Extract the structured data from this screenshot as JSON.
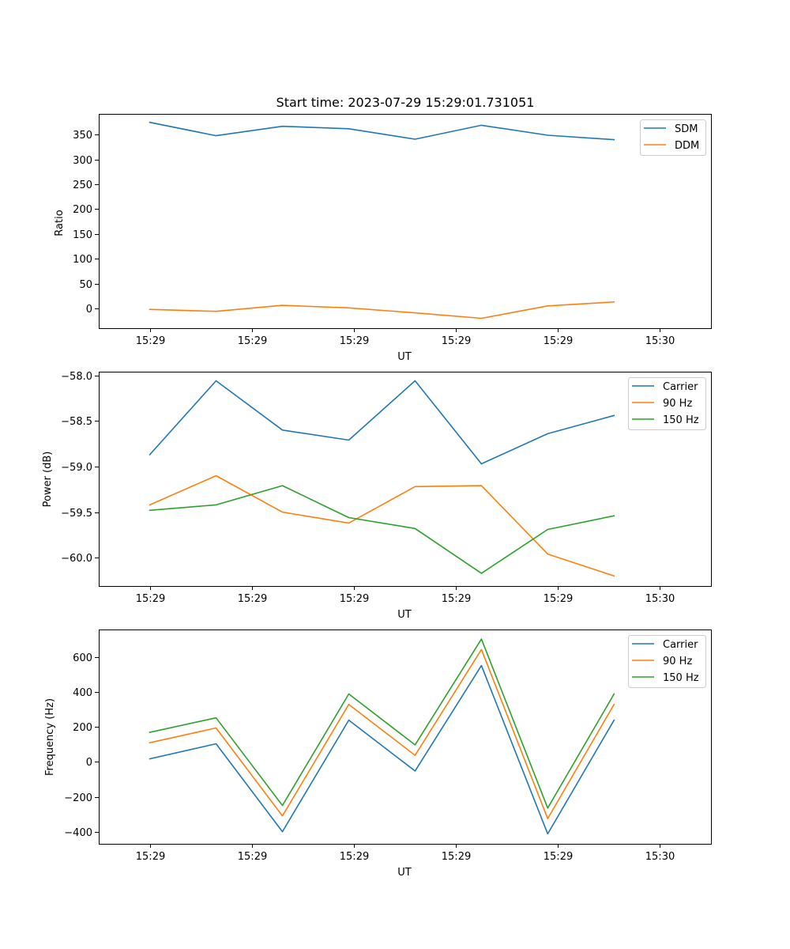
{
  "title": "Start time: 2023-07-29 15:29:01.731051",
  "colors": {
    "blue": "#1f77b4",
    "orange": "#ff7f0e",
    "green": "#2ca02c"
  },
  "chart_data": [
    {
      "type": "line",
      "id": "ratio",
      "xlabel": "UT",
      "ylabel": "Ratio",
      "xlim": [
        -0.5,
        5.5
      ],
      "x_ticks": [
        0,
        1,
        2,
        3,
        4,
        5
      ],
      "x_tick_labels": [
        "15:29",
        "15:29",
        "15:29",
        "15:29",
        "15:29",
        "15:30"
      ],
      "ylim": [
        -40,
        392
      ],
      "y_ticks": [
        0,
        50,
        100,
        150,
        200,
        250,
        300,
        350
      ],
      "y_tick_labels": [
        "0",
        "50",
        "100",
        "150",
        "200",
        "250",
        "300",
        "350"
      ],
      "x": [
        0.0,
        0.65,
        1.3,
        1.95,
        2.6,
        3.25,
        3.9,
        4.55
      ],
      "legend_loc": "upper-right",
      "series": [
        {
          "name": "SDM",
          "color": "#1f77b4",
          "values": [
            375,
            348,
            367,
            362,
            341,
            369,
            349,
            340
          ]
        },
        {
          "name": "DDM",
          "color": "#ff7f0e",
          "values": [
            -2,
            -6,
            6,
            1,
            -9,
            -20,
            5,
            13
          ]
        }
      ]
    },
    {
      "type": "line",
      "id": "power",
      "xlabel": "UT",
      "ylabel": "Power (dB)",
      "xlim": [
        -0.5,
        5.5
      ],
      "x_ticks": [
        0,
        1,
        2,
        3,
        4,
        5
      ],
      "x_tick_labels": [
        "15:29",
        "15:29",
        "15:29",
        "15:29",
        "15:29",
        "15:30"
      ],
      "ylim": [
        -60.31,
        -57.96
      ],
      "y_ticks": [
        -58.0,
        -58.5,
        -59.0,
        -59.5,
        -60.0
      ],
      "y_tick_labels": [
        "−58.0",
        "−58.5",
        "−59.0",
        "−59.5",
        "−60.0"
      ],
      "x": [
        0.0,
        0.65,
        1.3,
        1.95,
        2.6,
        3.25,
        3.9,
        4.55
      ],
      "legend_loc": "upper-right",
      "series": [
        {
          "name": "Carrier",
          "color": "#1f77b4",
          "values": [
            -58.87,
            -58.06,
            -58.6,
            -58.71,
            -58.06,
            -58.97,
            -58.64,
            -58.44
          ]
        },
        {
          "name": "90 Hz",
          "color": "#ff7f0e",
          "values": [
            -59.42,
            -59.1,
            -59.5,
            -59.62,
            -59.22,
            -59.21,
            -59.96,
            -60.2
          ]
        },
        {
          "name": "150 Hz",
          "color": "#2ca02c",
          "values": [
            -59.48,
            -59.42,
            -59.21,
            -59.56,
            -59.68,
            -60.17,
            -59.69,
            -59.54
          ]
        }
      ]
    },
    {
      "type": "line",
      "id": "frequency",
      "xlabel": "UT",
      "ylabel": "Frequency (Hz)",
      "xlim": [
        -0.5,
        5.5
      ],
      "x_ticks": [
        0,
        1,
        2,
        3,
        4,
        5
      ],
      "x_tick_labels": [
        "15:29",
        "15:29",
        "15:29",
        "15:29",
        "15:29",
        "15:30"
      ],
      "ylim": [
        -470,
        760
      ],
      "y_ticks": [
        -400,
        -200,
        0,
        200,
        400,
        600
      ],
      "y_tick_labels": [
        "−400",
        "−200",
        "0",
        "200",
        "400",
        "600"
      ],
      "x": [
        0.0,
        0.65,
        1.3,
        1.95,
        2.6,
        3.25,
        3.9,
        4.55
      ],
      "legend_loc": "upper-right",
      "series": [
        {
          "name": "Carrier",
          "color": "#1f77b4",
          "values": [
            18,
            104,
            -400,
            240,
            -52,
            553,
            -413,
            240
          ]
        },
        {
          "name": "90 Hz",
          "color": "#ff7f0e",
          "values": [
            110,
            195,
            -310,
            330,
            38,
            645,
            -325,
            330
          ]
        },
        {
          "name": "150 Hz",
          "color": "#2ca02c",
          "values": [
            170,
            253,
            -250,
            390,
            98,
            705,
            -265,
            390
          ]
        }
      ]
    }
  ]
}
